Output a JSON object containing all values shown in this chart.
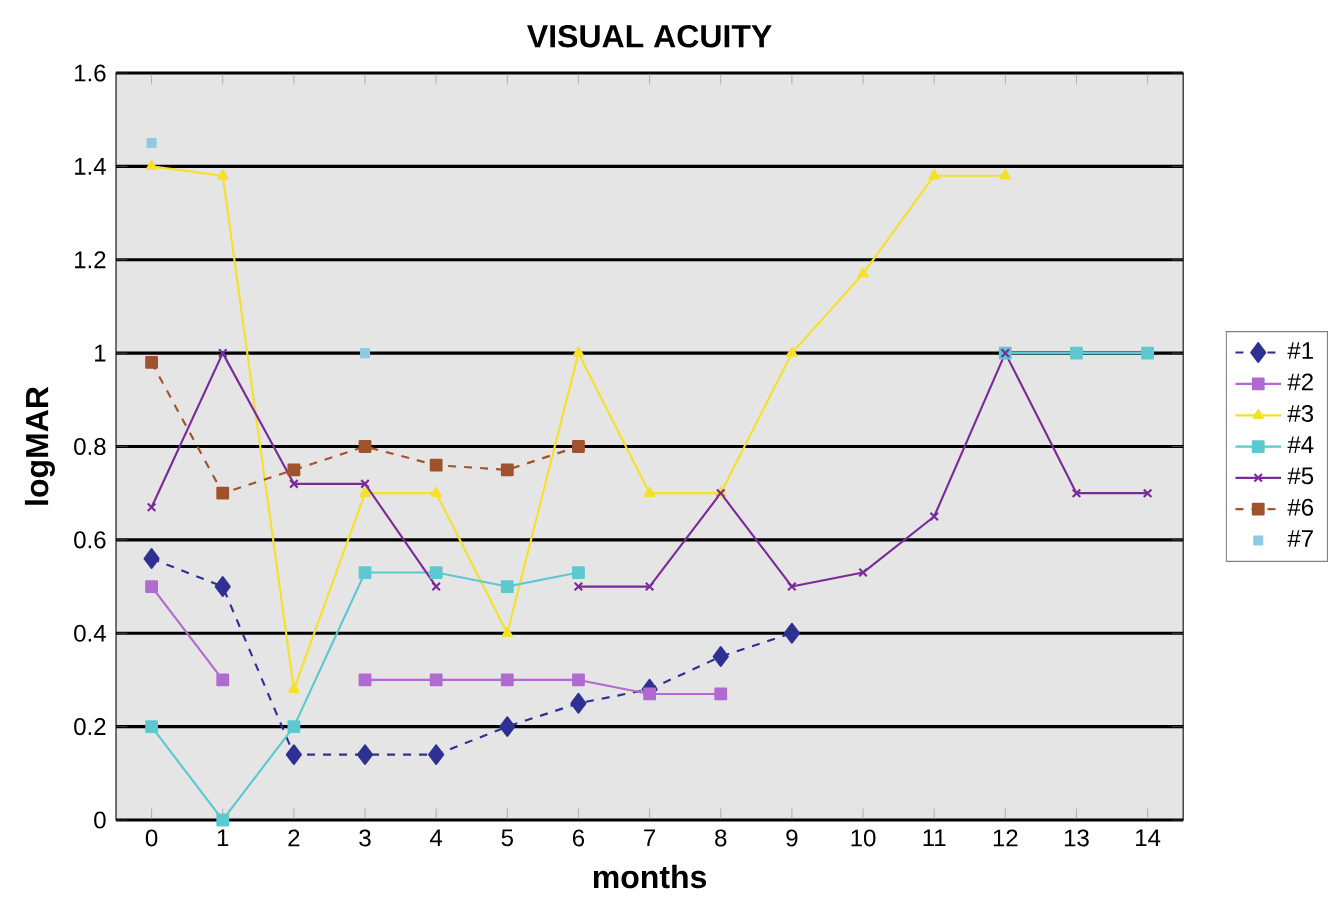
{
  "chart_data": {
    "type": "line",
    "title": "VISUAL ACUITY",
    "xlabel": "months",
    "ylabel": "logMAR",
    "x": [
      0,
      1,
      2,
      3,
      4,
      5,
      6,
      7,
      8,
      9,
      10,
      11,
      12,
      13,
      14
    ],
    "xlim": [
      -0.5,
      14.5
    ],
    "xticks": [
      0,
      1,
      2,
      3,
      4,
      5,
      6,
      7,
      8,
      9,
      10,
      11,
      12,
      13,
      14
    ],
    "ylim": [
      0,
      1.6
    ],
    "yticks": [
      0,
      0.2,
      0.4,
      0.6,
      0.8,
      1,
      1.2,
      1.4,
      1.6
    ],
    "grid": "y",
    "legend": "right",
    "series": [
      {
        "name": "#1",
        "color": "#2e3192",
        "marker": "diamond",
        "line_style": "dashed",
        "values": [
          0.56,
          0.5,
          0.14,
          0.14,
          0.14,
          0.2,
          0.25,
          0.28,
          0.35,
          0.4,
          null,
          null,
          null,
          null,
          null
        ]
      },
      {
        "name": "#2",
        "color": "#b06ad0",
        "marker": "square",
        "line_style": "solid",
        "values": [
          0.5,
          0.3,
          null,
          0.3,
          0.3,
          0.3,
          0.3,
          0.27,
          0.27,
          null,
          null,
          null,
          null,
          null,
          null
        ]
      },
      {
        "name": "#3",
        "color": "#f5e02a",
        "marker": "triangle",
        "line_style": "solid",
        "values": [
          1.4,
          1.38,
          0.28,
          0.7,
          0.7,
          0.4,
          1.0,
          0.7,
          0.7,
          1.0,
          1.17,
          1.38,
          1.38,
          null,
          null
        ]
      },
      {
        "name": "#4",
        "color": "#5cc8d0",
        "marker": "square",
        "line_style": "solid",
        "values": [
          0.2,
          0.0,
          0.2,
          0.53,
          0.53,
          0.5,
          0.53,
          null,
          null,
          null,
          null,
          null,
          1.0,
          1.0,
          1.0
        ]
      },
      {
        "name": "#5",
        "color": "#7a2a9a",
        "marker": "cross",
        "line_style": "solid",
        "values": [
          0.67,
          1.0,
          0.72,
          0.72,
          0.5,
          null,
          0.5,
          0.5,
          0.7,
          0.5,
          0.53,
          0.65,
          1.0,
          0.7,
          0.7
        ]
      },
      {
        "name": "#6",
        "color": "#a0522d",
        "marker": "square",
        "line_style": "dashed",
        "values": [
          0.98,
          0.7,
          0.75,
          0.8,
          0.76,
          0.75,
          0.8,
          null,
          null,
          null,
          null,
          null,
          null,
          null,
          null
        ]
      },
      {
        "name": "#7",
        "type": "scatter",
        "color": "#8ecae6",
        "marker": "square",
        "values": [
          1.45,
          null,
          null,
          1.0,
          null,
          null,
          null,
          null,
          null,
          null,
          null,
          null,
          null,
          null,
          null
        ]
      }
    ]
  }
}
